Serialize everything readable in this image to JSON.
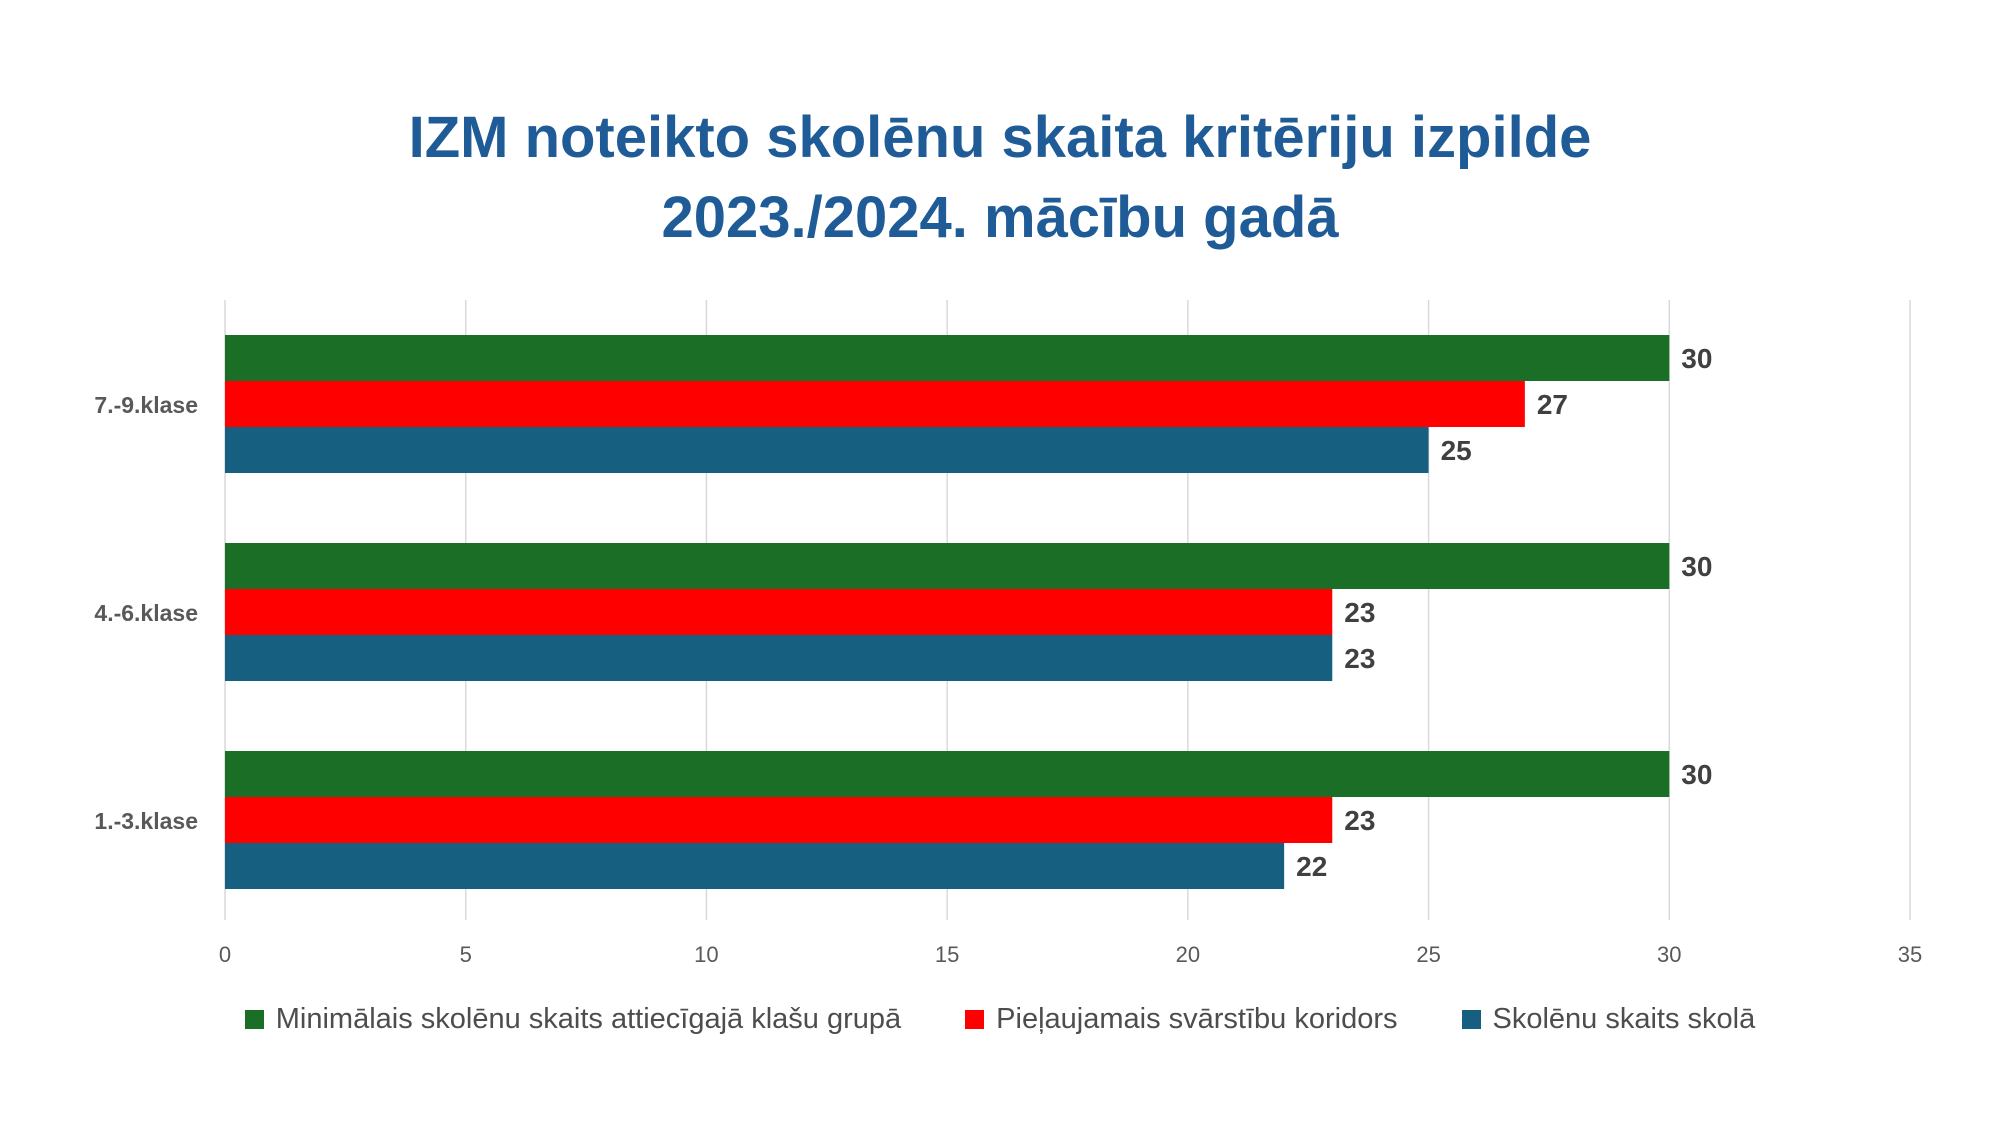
{
  "title_lines": [
    "IZM noteikto skolēnu skaita kritēriju izpilde",
    "2023./2024. mācību gadā"
  ],
  "colors": {
    "title": "#1f5b96",
    "grid": "#d9d9d9",
    "tick_text": "#595959",
    "category_text": "#595959",
    "data_label": "#404040"
  },
  "chart_data": {
    "type": "bar",
    "orientation": "horizontal",
    "categories": [
      "7.-9.klase",
      "4.-6.klase",
      "1.-3.klase"
    ],
    "series": [
      {
        "name": "Minimālais skolēnu skaits attiecīgajā klašu grupā",
        "color": "#1b6e25",
        "values": [
          30,
          30,
          30
        ]
      },
      {
        "name": "Pieļaujamais svārstību koridors",
        "color": "#ff0000",
        "values": [
          27,
          23,
          23
        ]
      },
      {
        "name": "Skolēnu skaits skolā",
        "color": "#175f80",
        "values": [
          25,
          23,
          22
        ]
      }
    ],
    "xlim": [
      0,
      35
    ],
    "xticks": [
      0,
      5,
      10,
      15,
      20,
      25,
      30,
      35
    ],
    "grid": "vertical",
    "data_labels": true,
    "legend_position": "bottom"
  }
}
